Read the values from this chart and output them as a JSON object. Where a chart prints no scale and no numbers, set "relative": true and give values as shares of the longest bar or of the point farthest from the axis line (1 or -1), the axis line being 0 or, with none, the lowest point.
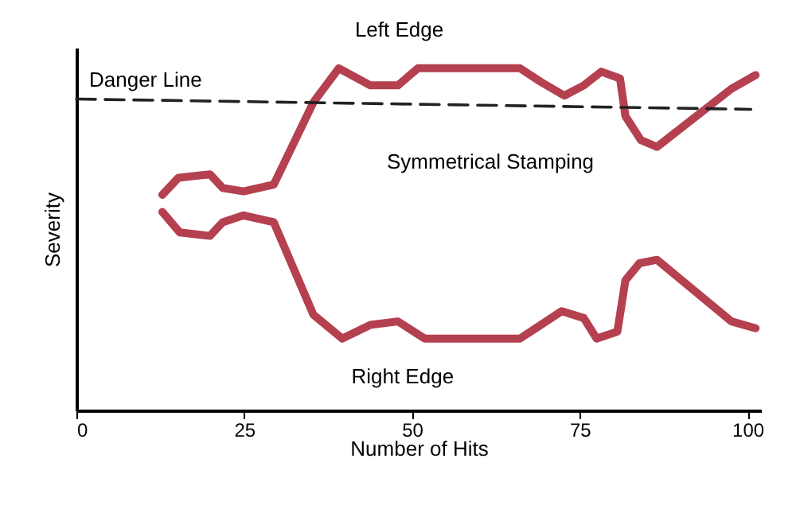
{
  "chart_data": {
    "type": "line",
    "relative": true,
    "xlabel": "Number of Hits",
    "ylabel": "Severity",
    "xlim": [
      0,
      102
    ],
    "xticks": [
      0,
      25,
      50,
      75,
      100
    ],
    "grid": false,
    "marker": "none",
    "line_style": "solid",
    "annotations": [
      "Symmetrical Stamping"
    ],
    "series": [
      {
        "name": "Left Edge",
        "color": "#b5404f",
        "x": [
          12.8,
          15.2,
          19.9,
          21.8,
          24.9,
          29.4,
          35.3,
          39.1,
          43.8,
          47.9,
          50.9,
          66.1,
          69.2,
          72.7,
          75.6,
          78.2,
          81.0,
          81.8,
          84.1,
          86.5,
          97.6,
          101.2
        ],
        "values": [
          0.63,
          0.68,
          0.69,
          0.65,
          0.64,
          0.66,
          0.9,
          1.0,
          0.95,
          0.95,
          1.0,
          1.0,
          0.96,
          0.92,
          0.95,
          0.99,
          0.97,
          0.86,
          0.79,
          0.77,
          0.94,
          0.98
        ]
      },
      {
        "name": "Right Edge",
        "color": "#b5404f",
        "x": [
          12.8,
          15.4,
          19.9,
          21.8,
          24.9,
          29.4,
          35.3,
          39.6,
          43.8,
          47.9,
          51.9,
          66.1,
          69.2,
          72.3,
          75.6,
          77.5,
          80.6,
          81.8,
          83.9,
          86.5,
          97.6,
          101.2
        ],
        "values": [
          0.58,
          0.52,
          0.51,
          0.55,
          0.57,
          0.55,
          0.28,
          0.21,
          0.25,
          0.26,
          0.21,
          0.21,
          0.25,
          0.29,
          0.27,
          0.21,
          0.23,
          0.38,
          0.43,
          0.44,
          0.26,
          0.24
        ]
      },
      {
        "name": "Danger Line",
        "color": "#222222",
        "line_style": "dashed",
        "x": [
          0,
          100.5
        ],
        "values": [
          0.91,
          0.88
        ]
      }
    ]
  }
}
